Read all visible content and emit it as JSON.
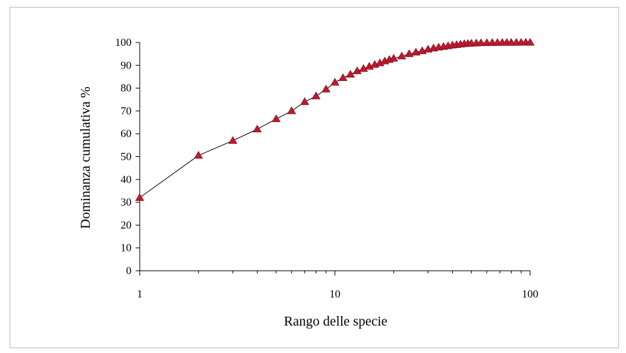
{
  "chart_data": {
    "type": "scatter",
    "title": "",
    "xlabel": "Rango delle specie",
    "ylabel": "Dominanza cumulativa %",
    "x_scale": "log",
    "xlim": [
      1,
      100
    ],
    "ylim": [
      0,
      100
    ],
    "x_ticks": [
      "1",
      "10",
      "100"
    ],
    "y_ticks": [
      "0",
      "10",
      "20",
      "30",
      "40",
      "50",
      "60",
      "70",
      "80",
      "90",
      "100"
    ],
    "grid": false,
    "legend": "none",
    "marker": "triangle",
    "colors": {
      "marker": "#c0182e",
      "marker_edge": "#6b0f1a",
      "line": "#000000",
      "axis": "#000000"
    },
    "series": [
      {
        "x": [
          1,
          2,
          3,
          4,
          5,
          6,
          7,
          8,
          9,
          10,
          11,
          12,
          13,
          14,
          15,
          16,
          17,
          18,
          19,
          20,
          22,
          24,
          26,
          28,
          30,
          32,
          34,
          36,
          38,
          40,
          42,
          44,
          46,
          48,
          50,
          53,
          56,
          60,
          64,
          68,
          72,
          76,
          80,
          85,
          90,
          95,
          100
        ],
        "y": [
          32,
          50.5,
          57,
          62,
          66.5,
          70,
          74,
          76.5,
          79.5,
          82.5,
          84.5,
          86,
          87.5,
          88.5,
          89.5,
          90.3,
          91,
          91.8,
          92.5,
          93,
          94,
          95,
          95.7,
          96.3,
          97,
          97.5,
          97.9,
          98.2,
          98.5,
          98.8,
          99,
          99.2,
          99.4,
          99.5,
          99.6,
          99.7,
          99.8,
          99.85,
          99.9,
          99.92,
          99.95,
          99.96,
          99.97,
          99.98,
          99.99,
          100,
          100
        ]
      }
    ]
  }
}
